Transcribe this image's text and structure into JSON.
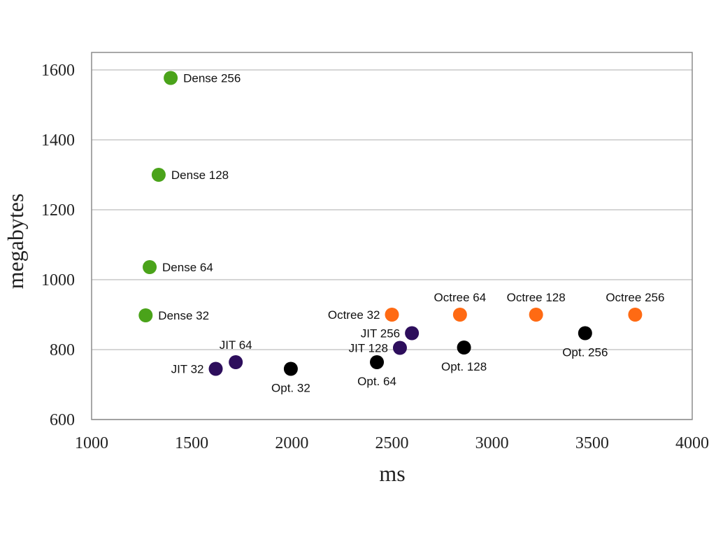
{
  "chart_data": {
    "type": "scatter",
    "xlabel": "ms",
    "ylabel": "megabytes",
    "xlim": [
      1000,
      4000
    ],
    "ylim": [
      600,
      1650
    ],
    "xticks": [
      1000,
      1500,
      2000,
      2500,
      3000,
      3500,
      4000
    ],
    "yticks": [
      600,
      800,
      1000,
      1200,
      1400,
      1600
    ],
    "grid": "horizontal",
    "legend": "none",
    "colors": {
      "dense": "#4aa31a",
      "jit": "#2d0e5c",
      "opt": "#000000",
      "octree": "#ff6a13"
    },
    "points": [
      {
        "label": "Dense 256",
        "x": 1395,
        "y": 1577,
        "group": "dense",
        "label_pos": "right"
      },
      {
        "label": "Dense 128",
        "x": 1335,
        "y": 1300,
        "group": "dense",
        "label_pos": "right"
      },
      {
        "label": "Dense 64",
        "x": 1290,
        "y": 1036,
        "group": "dense",
        "label_pos": "right"
      },
      {
        "label": "Dense 32",
        "x": 1270,
        "y": 898,
        "group": "dense",
        "label_pos": "right"
      },
      {
        "label": "JIT 32",
        "x": 1620,
        "y": 745,
        "group": "jit",
        "label_pos": "left"
      },
      {
        "label": "JIT 64",
        "x": 1720,
        "y": 764,
        "group": "jit",
        "label_pos": "above"
      },
      {
        "label": "JIT 128",
        "x": 2540,
        "y": 805,
        "group": "jit",
        "label_pos": "left"
      },
      {
        "label": "JIT 256",
        "x": 2600,
        "y": 847,
        "group": "jit",
        "label_pos": "left"
      },
      {
        "label": "Opt. 32",
        "x": 1995,
        "y": 745,
        "group": "opt",
        "label_pos": "below"
      },
      {
        "label": "Opt. 64",
        "x": 2425,
        "y": 764,
        "group": "opt",
        "label_pos": "below"
      },
      {
        "label": "Opt. 128",
        "x": 2860,
        "y": 806,
        "group": "opt",
        "label_pos": "below"
      },
      {
        "label": "Opt. 256",
        "x": 3465,
        "y": 847,
        "group": "opt",
        "label_pos": "below"
      },
      {
        "label": "Octree 32",
        "x": 2500,
        "y": 900,
        "group": "octree",
        "label_pos": "left"
      },
      {
        "label": "Octree 64",
        "x": 2840,
        "y": 900,
        "group": "octree",
        "label_pos": "above"
      },
      {
        "label": "Octree 128",
        "x": 3220,
        "y": 900,
        "group": "octree",
        "label_pos": "above"
      },
      {
        "label": "Octree 256",
        "x": 3715,
        "y": 900,
        "group": "octree",
        "label_pos": "above"
      }
    ]
  }
}
